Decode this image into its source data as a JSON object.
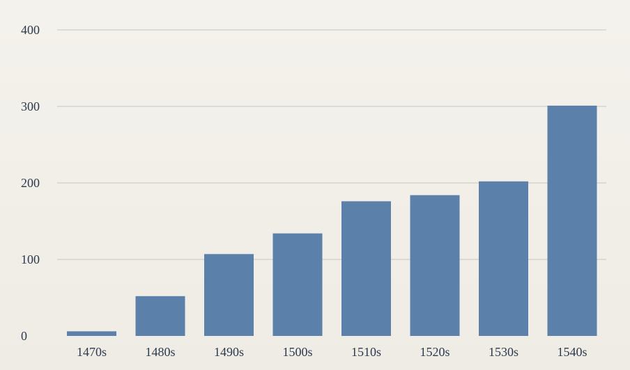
{
  "chart_data": {
    "type": "bar",
    "title": "",
    "xlabel": "",
    "ylabel": "",
    "categories": [
      "1470s",
      "1480s",
      "1490s",
      "1500s",
      "1510s",
      "1520s",
      "1530s",
      "1540s"
    ],
    "values": [
      6,
      52,
      107,
      134,
      176,
      184,
      202,
      301
    ],
    "ylim": [
      0,
      400
    ],
    "yticks": [
      "0",
      "100",
      "200",
      "300",
      "400"
    ],
    "ytick_values": [
      0,
      100,
      200,
      300,
      400
    ],
    "grid": true,
    "legend": "none",
    "colors": {
      "bar": "#5b80aa",
      "grid": "#c9c6c0",
      "text": "#2b3a4d",
      "background": "#f1eee8"
    }
  }
}
